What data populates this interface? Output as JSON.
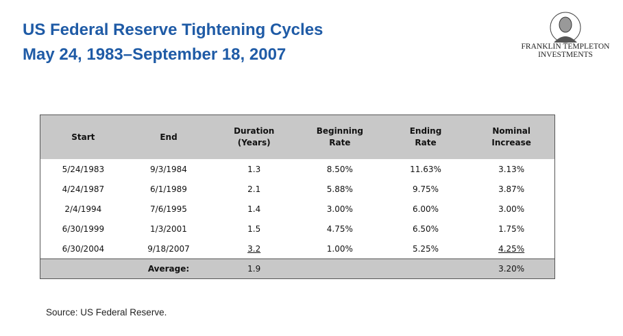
{
  "header": {
    "title": "US Federal Reserve Tightening Cycles",
    "subtitle": "May 24, 1983–September 18, 2007"
  },
  "logo": {
    "line1": "FRANKLIN TEMPLETON",
    "line2": "INVESTMENTS"
  },
  "table": {
    "columns": [
      [
        "Start"
      ],
      [
        "End"
      ],
      [
        "Duration",
        "(Years)"
      ],
      [
        "Beginning",
        "Rate"
      ],
      [
        "Ending",
        "Rate"
      ],
      [
        "Nominal",
        "Increase"
      ]
    ],
    "rows": [
      [
        "5/24/1983",
        "9/3/1984",
        "1.3",
        "8.50%",
        "11.63%",
        "3.13%"
      ],
      [
        "4/24/1987",
        "6/1/1989",
        "2.1",
        "5.88%",
        "9.75%",
        "3.87%"
      ],
      [
        "2/4/1994",
        "7/6/1995",
        "1.4",
        "3.00%",
        "6.00%",
        "3.00%"
      ],
      [
        "6/30/1999",
        "1/3/2001",
        "1.5",
        "4.75%",
        "6.50%",
        "1.75%"
      ],
      [
        "6/30/2004",
        "9/18/2007",
        "3.2",
        "1.00%",
        "5.25%",
        "4.25%"
      ]
    ],
    "average": {
      "label": "Average:",
      "duration": "1.9",
      "increase": "3.20%"
    }
  },
  "source": "Source: US Federal Reserve."
}
